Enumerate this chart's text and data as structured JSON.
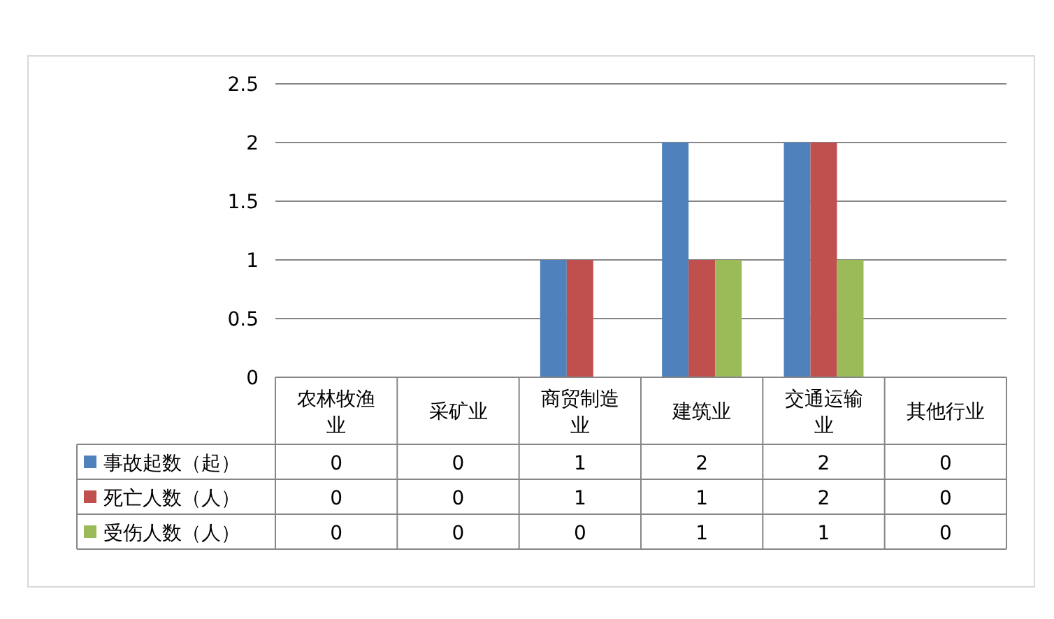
{
  "chart_data": {
    "type": "bar",
    "categories": [
      "农林牧渔业",
      "采矿业",
      "商贸制造业",
      "建筑业",
      "交通运输业",
      "其他行业"
    ],
    "series": [
      {
        "name": "事故起数（起）",
        "color": "#4f81bd",
        "values": [
          0,
          0,
          1,
          2,
          2,
          0
        ]
      },
      {
        "name": "死亡人数（人）",
        "color": "#c0504d",
        "values": [
          0,
          0,
          1,
          1,
          2,
          0
        ]
      },
      {
        "name": "受伤人数（人）",
        "color": "#9bbb59",
        "values": [
          0,
          0,
          0,
          1,
          1,
          0
        ]
      }
    ],
    "ylim": [
      0,
      2.5
    ],
    "yticks": [
      0,
      0.5,
      1,
      1.5,
      2,
      2.5
    ],
    "grid": "y",
    "data_labels": true,
    "legend": "bottom"
  }
}
